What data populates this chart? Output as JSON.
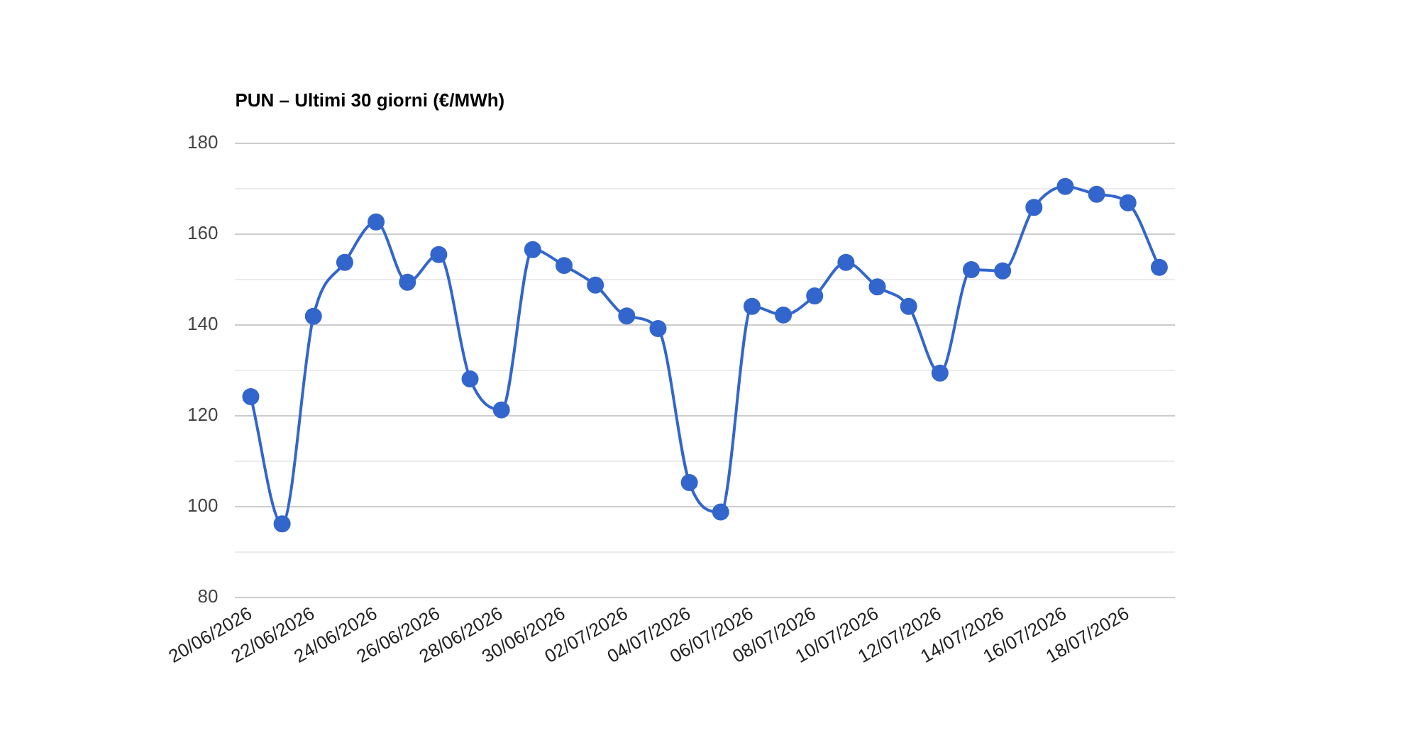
{
  "chart_data": {
    "type": "line",
    "title": "PUN – Ultimi 30 giorni (€/MWh)",
    "categories": [
      "20/06/2026",
      null,
      "22/06/2026",
      null,
      "24/06/2026",
      null,
      "26/06/2026",
      null,
      "28/06/2026",
      null,
      "30/06/2026",
      null,
      "02/07/2026",
      null,
      "04/07/2026",
      null,
      "06/07/2026",
      null,
      "08/07/2026",
      null,
      "10/07/2026",
      null,
      "12/07/2026",
      null,
      "14/07/2026",
      null,
      "16/07/2026",
      null,
      "18/07/2026",
      null
    ],
    "series": [
      {
        "color": "#3366cc",
        "values": [
          124.2,
          96.2,
          141.9,
          153.8,
          162.7,
          149.4,
          155.5,
          128.1,
          121.3,
          156.6,
          153.1,
          148.8,
          142.0,
          139.2,
          105.3,
          98.8,
          144.1,
          142.2,
          146.4,
          153.8,
          148.4,
          144.1,
          129.4,
          152.2,
          151.9,
          165.9,
          170.5,
          168.8,
          166.9,
          152.7
        ]
      }
    ],
    "ylim": [
      80,
      180
    ],
    "yticks": [
      80,
      {
        "value": 90,
        "label": null
      },
      100,
      {
        "value": 110,
        "label": null
      },
      120,
      {
        "value": 130,
        "label": null
      },
      140,
      {
        "value": 150,
        "label": null
      },
      160,
      {
        "value": 170,
        "label": null
      },
      180
    ],
    "grid": "y",
    "legend": false,
    "marker": "circle",
    "line_style": "solid"
  }
}
